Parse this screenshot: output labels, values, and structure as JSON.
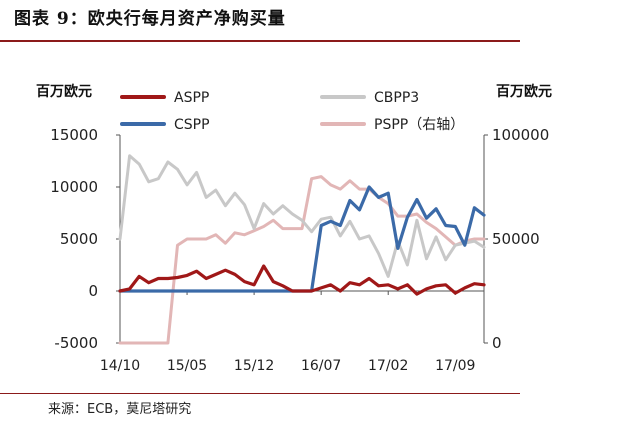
{
  "figure": {
    "title": "图表 9：欧央行每月资产净购买量",
    "source": "来源：ECB，莫尼塔研究"
  },
  "colors": {
    "ASPP": "#a01818",
    "CBPP3": "#c8c8c8",
    "CSPP": "#3b6aa8",
    "PSPP": "#e2b6b6",
    "rule": "#8b1a1a",
    "axis": "#555555"
  },
  "chart_data": {
    "type": "line",
    "title": "",
    "ylabel_left": "百万欧元",
    "ylabel_right": "百万欧元",
    "ylim_left": [
      -5000,
      15000
    ],
    "yticks_left": [
      -5000,
      0,
      5000,
      10000,
      15000
    ],
    "ylim_right": [
      0,
      100000
    ],
    "yticks_right": [
      0,
      50000,
      100000
    ],
    "x_tick_labels": [
      "14/10",
      "15/05",
      "15/12",
      "16/07",
      "17/02",
      "17/09"
    ],
    "x_tick_dates": [
      "2014-10",
      "2015-05",
      "2015-12",
      "2016-07",
      "2017-02",
      "2017-09"
    ],
    "legend": [
      "ASPP",
      "CBPP3",
      "CSPP",
      "PSPP（右轴）"
    ],
    "legend_position": "top",
    "grid": false,
    "x": [
      "2014-10",
      "2014-11",
      "2014-12",
      "2015-01",
      "2015-02",
      "2015-03",
      "2015-04",
      "2015-05",
      "2015-06",
      "2015-07",
      "2015-08",
      "2015-09",
      "2015-10",
      "2015-11",
      "2015-12",
      "2016-01",
      "2016-02",
      "2016-03",
      "2016-04",
      "2016-05",
      "2016-06",
      "2016-07",
      "2016-08",
      "2016-09",
      "2016-10",
      "2016-11",
      "2016-12",
      "2017-01",
      "2017-02",
      "2017-03",
      "2017-04",
      "2017-05",
      "2017-06",
      "2017-07",
      "2017-08",
      "2017-09",
      "2017-10",
      "2017-11",
      "2017-12"
    ],
    "series": [
      {
        "name": "ASPP",
        "axis": "left",
        "values": [
          0,
          200,
          1400,
          800,
          1200,
          1200,
          1300,
          1500,
          1900,
          1200,
          1600,
          2000,
          1600,
          900,
          600,
          2400,
          900,
          500,
          0,
          0,
          0,
          300,
          600,
          0,
          800,
          600,
          1200,
          500,
          600,
          200,
          600,
          -300,
          200,
          500,
          600,
          -200,
          300,
          700,
          600
        ]
      },
      {
        "name": "CBPP3",
        "axis": "left",
        "values": [
          5000,
          13000,
          12200,
          10500,
          10800,
          12400,
          11700,
          10200,
          11400,
          9000,
          9700,
          8200,
          9400,
          8300,
          6000,
          8400,
          7400,
          8200,
          7400,
          6800,
          5700,
          6900,
          7100,
          5300,
          6700,
          5000,
          5300,
          3600,
          1400,
          4800,
          2500,
          6800,
          3100,
          5200,
          3000,
          4400,
          4600,
          4800,
          4200
        ]
      },
      {
        "name": "CSPP",
        "axis": "left",
        "values": [
          0,
          0,
          0,
          0,
          0,
          0,
          0,
          0,
          0,
          0,
          0,
          0,
          0,
          0,
          0,
          0,
          0,
          0,
          0,
          0,
          0,
          6300,
          6700,
          6300,
          8700,
          7800,
          10000,
          9000,
          9400,
          4100,
          7100,
          8800,
          7000,
          7900,
          6300,
          6200,
          4400,
          8000,
          7300
        ]
      },
      {
        "name": "PSPP（右轴）",
        "axis": "right",
        "values": [
          0,
          0,
          0,
          0,
          0,
          0,
          47000,
          50000,
          50000,
          50000,
          52000,
          48000,
          53000,
          52000,
          54000,
          56000,
          59000,
          55000,
          55000,
          55000,
          79000,
          80000,
          76000,
          74000,
          78000,
          74000,
          74000,
          70000,
          67000,
          61000,
          61000,
          62000,
          58000,
          55000,
          51000,
          47000,
          49000,
          50000,
          50000
        ]
      }
    ]
  }
}
